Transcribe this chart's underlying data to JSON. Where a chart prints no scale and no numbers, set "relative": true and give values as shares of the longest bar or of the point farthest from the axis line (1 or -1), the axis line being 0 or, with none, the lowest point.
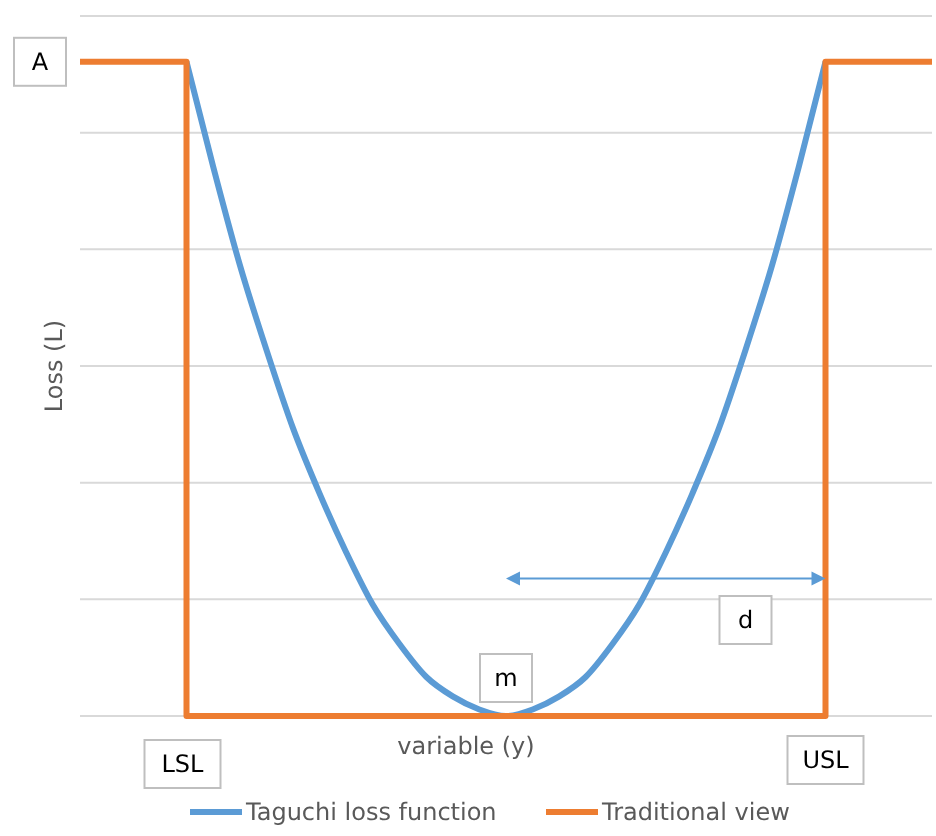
{
  "chart_data": {
    "type": "line",
    "relative": true,
    "xlabel": "variable (y)",
    "ylabel": "Loss (L)",
    "grid": "y",
    "legend": "bottom",
    "marker": "none",
    "categories": [
      null,
      null,
      null,
      null,
      null,
      null,
      null,
      null,
      null,
      null,
      null,
      null,
      null,
      null,
      null,
      null,
      null,
      null,
      null,
      null,
      null,
      null,
      null,
      null,
      null,
      null,
      null,
      null,
      null,
      null,
      null,
      null,
      null
    ],
    "series": [
      {
        "name": "Taguchi loss function",
        "color": "#5b9bd5",
        "values": [
          null,
          null,
          null,
          null,
          1,
          0.84,
          0.69,
          0.56,
          0.44,
          0.34,
          0.25,
          0.17,
          0.11,
          0.06,
          0.03,
          0.01,
          0,
          0.01,
          0.03,
          0.06,
          0.11,
          0.17,
          0.25,
          0.34,
          0.44,
          0.56,
          0.69,
          0.84,
          1,
          null,
          null,
          null,
          null
        ]
      },
      {
        "name": "Traditional view",
        "type": "step",
        "color": "#ed7d31",
        "values": [
          1,
          1,
          1,
          1,
          0,
          0,
          0,
          0,
          0,
          0,
          0,
          0,
          0,
          0,
          0,
          0,
          0,
          0,
          0,
          0,
          0,
          0,
          0,
          0,
          0,
          0,
          0,
          0,
          1,
          1,
          1,
          1,
          1
        ]
      }
    ],
    "annotations": [
      "A",
      "LSL",
      "m",
      "USL",
      "d"
    ]
  }
}
